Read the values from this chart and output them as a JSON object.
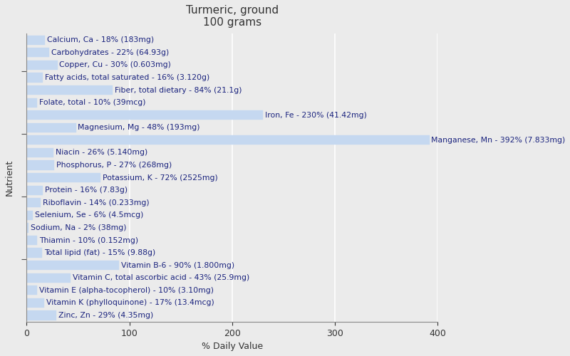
{
  "title": "Turmeric, ground\n100 grams",
  "xlabel": "% Daily Value",
  "ylabel": "Nutrient",
  "background_color": "#ebebeb",
  "plot_background_color": "#ebebeb",
  "bar_color": "#c5d8f0",
  "bar_edge_color": "#c5d8f0",
  "nutrients": [
    {
      "label": "Calcium, Ca - 18% (183mg)",
      "value": 18
    },
    {
      "label": "Carbohydrates - 22% (64.93g)",
      "value": 22
    },
    {
      "label": "Copper, Cu - 30% (0.603mg)",
      "value": 30
    },
    {
      "label": "Fatty acids, total saturated - 16% (3.120g)",
      "value": 16
    },
    {
      "label": "Fiber, total dietary - 84% (21.1g)",
      "value": 84
    },
    {
      "label": "Folate, total - 10% (39mcg)",
      "value": 10
    },
    {
      "label": "Iron, Fe - 230% (41.42mg)",
      "value": 230
    },
    {
      "label": "Magnesium, Mg - 48% (193mg)",
      "value": 48
    },
    {
      "label": "Manganese, Mn - 392% (7.833mg)",
      "value": 392
    },
    {
      "label": "Niacin - 26% (5.140mg)",
      "value": 26
    },
    {
      "label": "Phosphorus, P - 27% (268mg)",
      "value": 27
    },
    {
      "label": "Potassium, K - 72% (2525mg)",
      "value": 72
    },
    {
      "label": "Protein - 16% (7.83g)",
      "value": 16
    },
    {
      "label": "Riboflavin - 14% (0.233mg)",
      "value": 14
    },
    {
      "label": "Selenium, Se - 6% (4.5mcg)",
      "value": 6
    },
    {
      "label": "Sodium, Na - 2% (38mg)",
      "value": 2
    },
    {
      "label": "Thiamin - 10% (0.152mg)",
      "value": 10
    },
    {
      "label": "Total lipid (fat) - 15% (9.88g)",
      "value": 15
    },
    {
      "label": "Vitamin B-6 - 90% (1.800mg)",
      "value": 90
    },
    {
      "label": "Vitamin C, total ascorbic acid - 43% (25.9mg)",
      "value": 43
    },
    {
      "label": "Vitamin E (alpha-tocopherol) - 10% (3.10mg)",
      "value": 10
    },
    {
      "label": "Vitamin K (phylloquinone) - 17% (13.4mcg)",
      "value": 17
    },
    {
      "label": "Zinc, Zn - 29% (4.35mg)",
      "value": 29
    }
  ],
  "xlim": [
    0,
    400
  ],
  "xticks": [
    0,
    100,
    200,
    300,
    400
  ],
  "grid_color": "#ffffff",
  "title_fontsize": 11,
  "label_fontsize": 7.8,
  "tick_fontsize": 9,
  "text_color": "#1a237e"
}
